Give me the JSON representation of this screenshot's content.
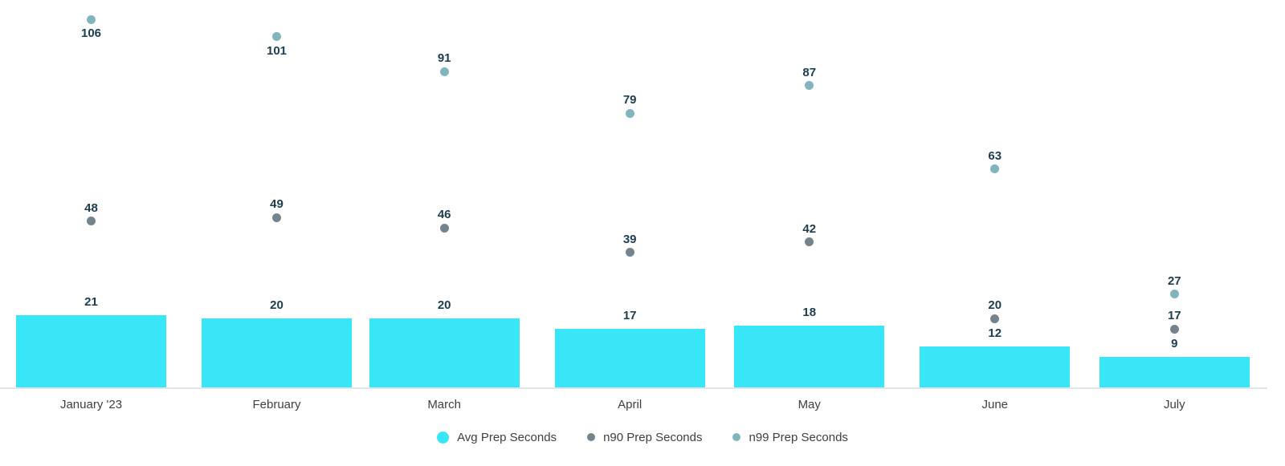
{
  "chart_data": {
    "type": "combo-bar-scatter",
    "title": "",
    "categories": [
      "January '23",
      "February",
      "March",
      "April",
      "May",
      "June",
      "July"
    ],
    "x_axis": {
      "type": "date-linear",
      "day_offsets": [
        0,
        31,
        59,
        90,
        120,
        151,
        181
      ]
    },
    "series": [
      {
        "name": "Avg Prep Seconds",
        "type": "bar",
        "color": "#39E6F7",
        "values": [
          21,
          20,
          20,
          17,
          18,
          12,
          9
        ]
      },
      {
        "name": "n90 Prep Seconds",
        "type": "scatter",
        "color": "#75838D",
        "values": [
          48,
          49,
          46,
          39,
          42,
          20,
          17
        ]
      },
      {
        "name": "n99 Prep Seconds",
        "type": "scatter",
        "color": "#82B4BD",
        "values": [
          106,
          101,
          91,
          79,
          87,
          63,
          27
        ]
      }
    ],
    "ylim": [
      0,
      111
    ],
    "grid": false,
    "legend_position": "bottom",
    "annotations": "every bar and point is labeled with its value",
    "colors": {
      "annotation_text": "#1D3D4F",
      "axis_label_text": "#3C4043",
      "axis_line": "#E1E3ED",
      "background": "#FFFFFF"
    }
  }
}
